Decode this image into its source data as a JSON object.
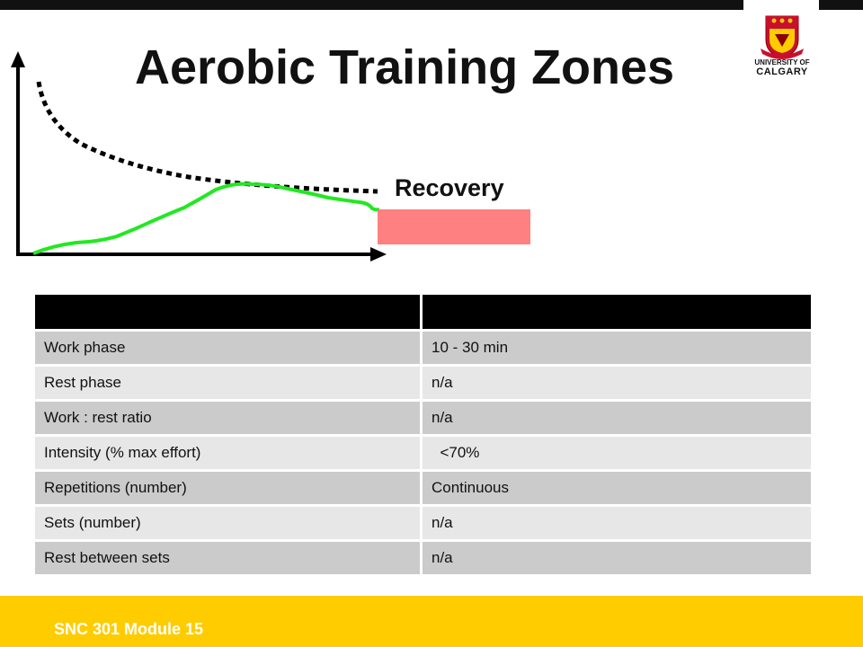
{
  "slide": {
    "title": "Aerobic Training Zones",
    "logo": {
      "line1": "UNIVERSITY OF",
      "line2": "CALGARY",
      "icon": "university-crest-icon"
    },
    "zone_label": "Recovery",
    "colors": {
      "zone_box": "#fe8080",
      "curve": "#22e822",
      "footer": "#ffcc00"
    }
  },
  "table": {
    "headers": [
      "",
      ""
    ],
    "rows": [
      {
        "label": "Work phase",
        "value": "10 - 30 min"
      },
      {
        "label": "Rest phase",
        "value": "n/a"
      },
      {
        "label": "Work : rest ratio",
        "value": "n/a"
      },
      {
        "label": "Intensity (% max effort)",
        "value": "  <70%"
      },
      {
        "label": "Repetitions (number)",
        "value": "Continuous"
      },
      {
        "label": "Sets (number)",
        "value": "n/a"
      },
      {
        "label": "Rest between sets",
        "value": "n/a"
      }
    ]
  },
  "footer": {
    "text": "SNC 301 Module 15"
  }
}
